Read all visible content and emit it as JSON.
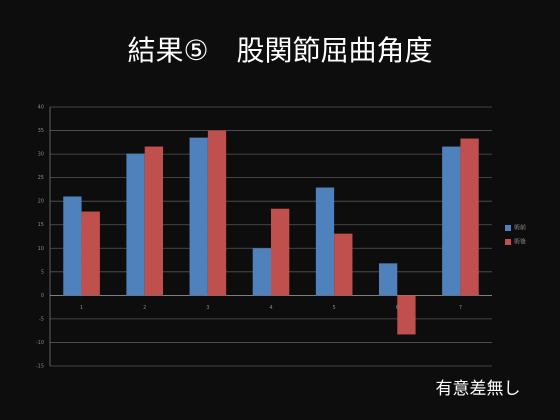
{
  "chart_data": {
    "type": "bar",
    "title": "結果⑤　股関節屈曲角度",
    "annotation": "有意差無し",
    "categories": [
      "1",
      "2",
      "3",
      "4",
      "5",
      "6",
      "7"
    ],
    "series": [
      {
        "name": "術前",
        "color": "#4f81bd",
        "values": [
          21,
          30.1,
          33.5,
          10,
          22.9,
          6.8,
          31.6
        ]
      },
      {
        "name": "術後",
        "color": "#c0504d",
        "values": [
          17.8,
          31.6,
          35,
          18.4,
          13.1,
          -8.3,
          33.3
        ]
      }
    ],
    "ylim": [
      -15,
      40
    ],
    "yticks": [
      -15,
      -10,
      -5,
      0,
      5,
      10,
      15,
      20,
      25,
      30,
      35,
      40
    ],
    "grid": true
  }
}
